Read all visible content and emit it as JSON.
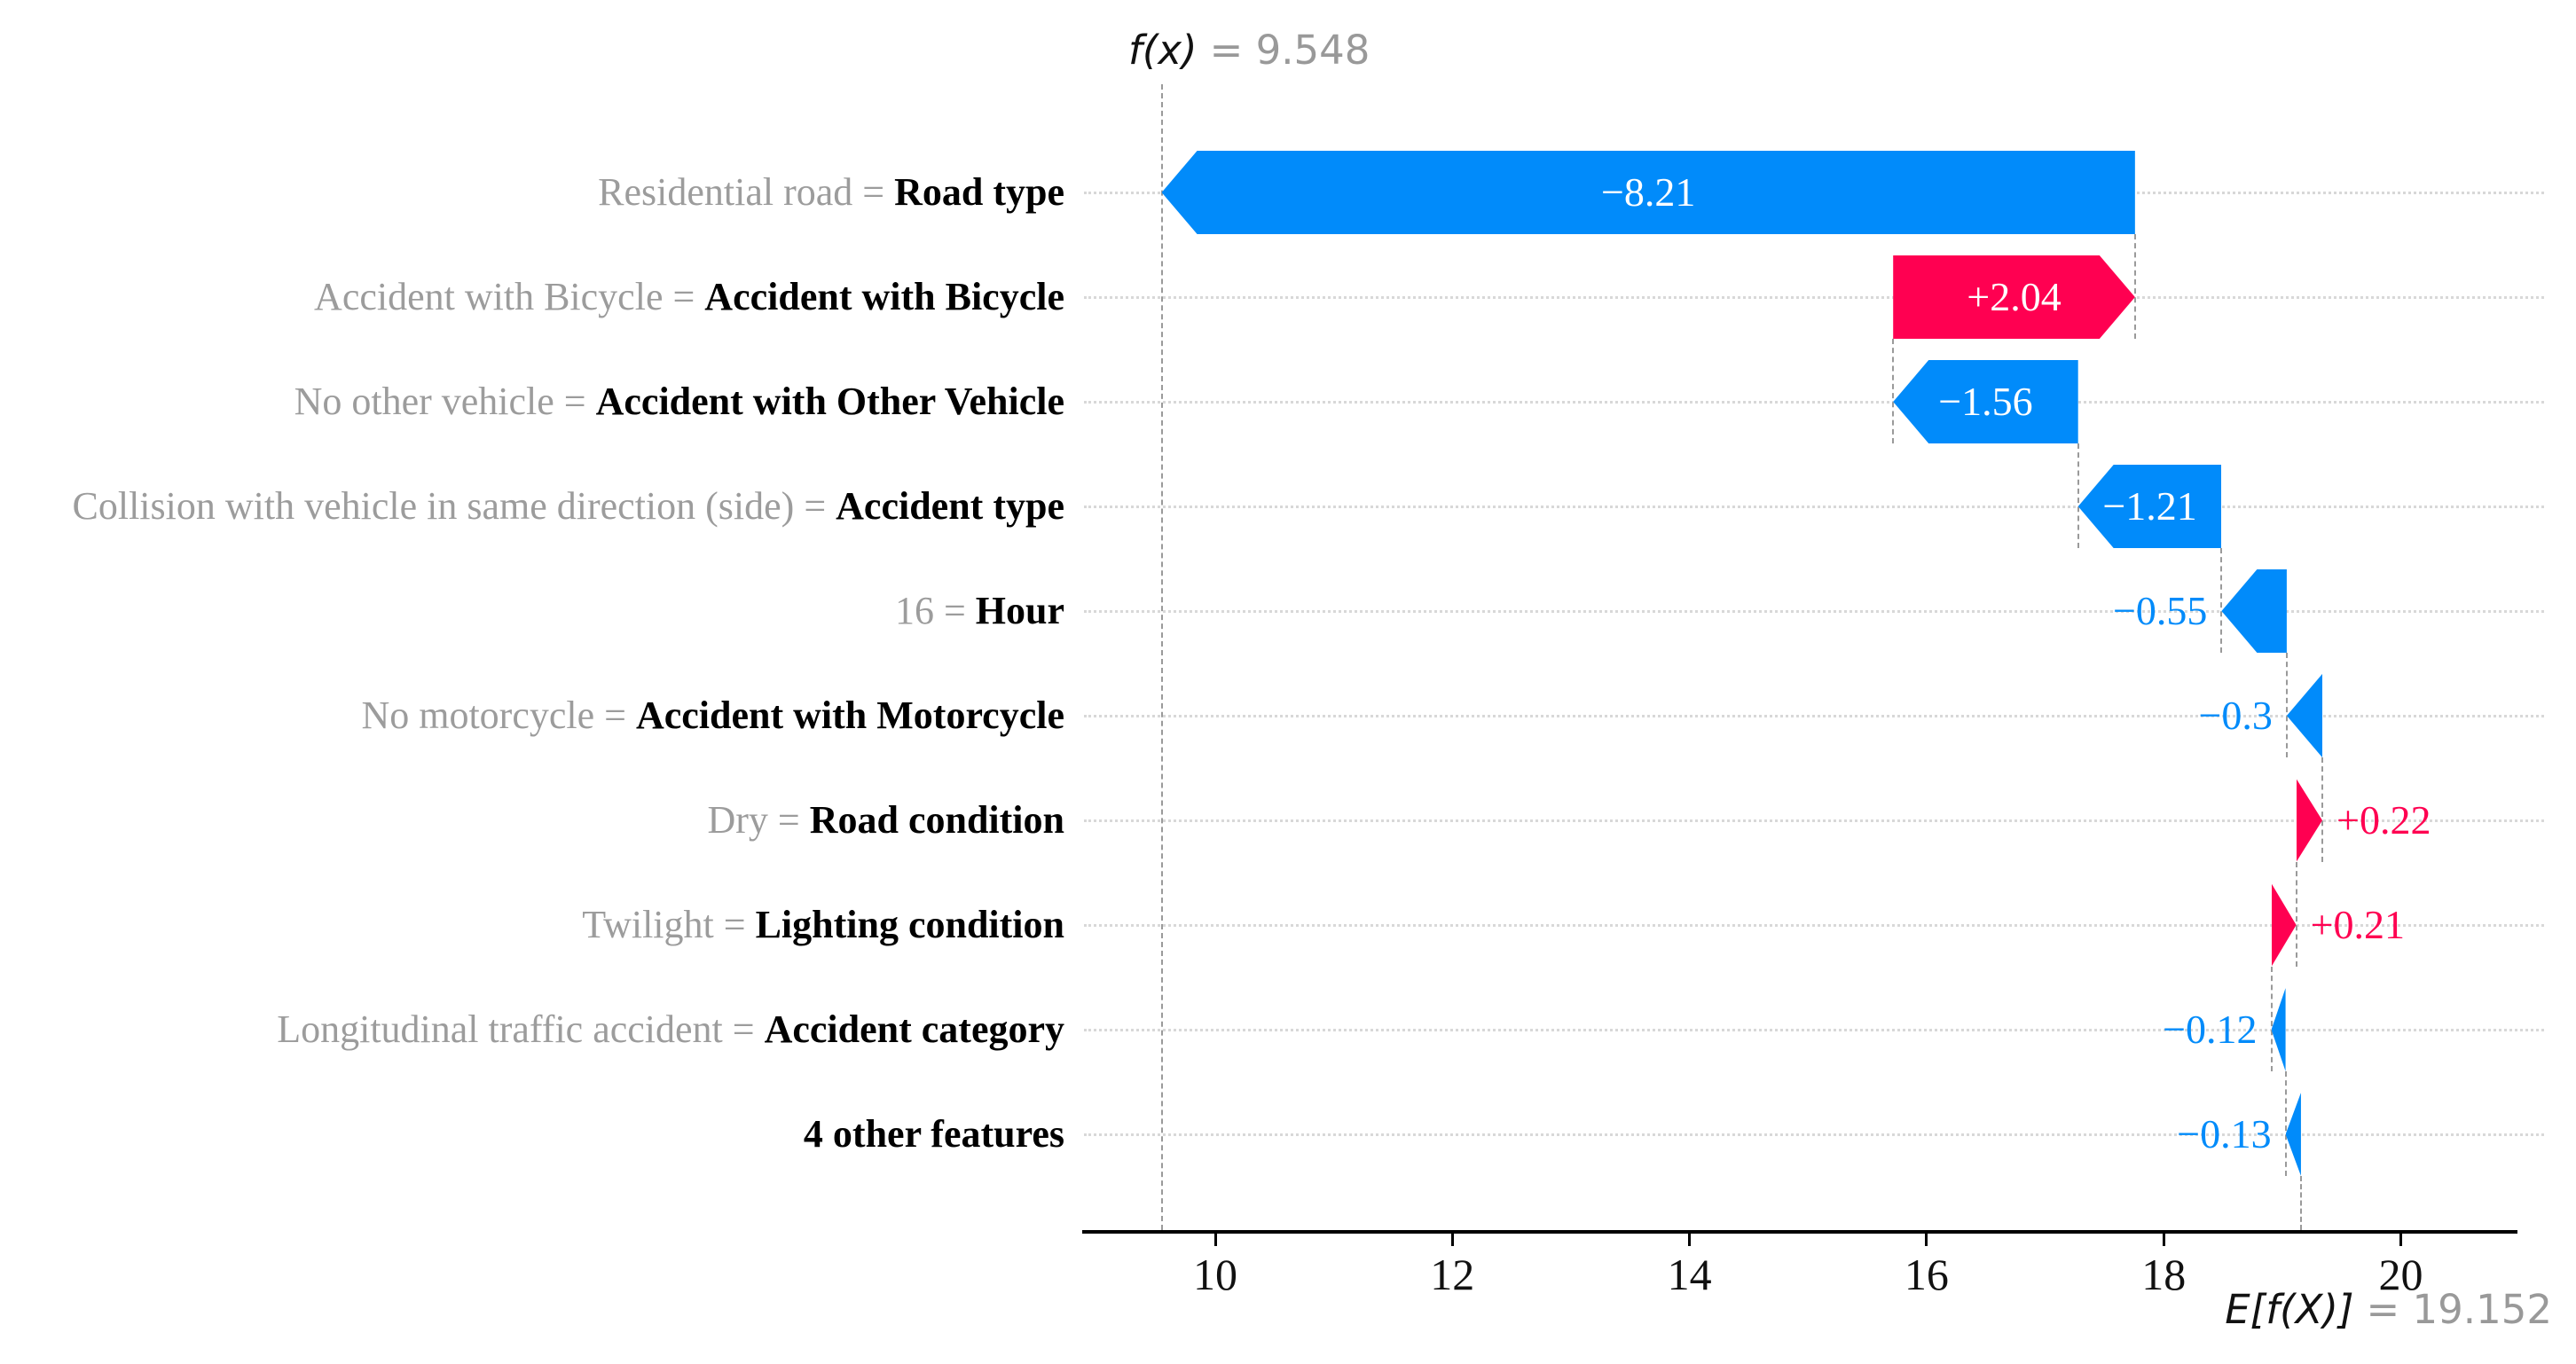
{
  "figure": {
    "background": "#ffffff"
  },
  "title": {
    "prefix": "f(x)",
    "suffix": "= 9.548"
  },
  "baseline": {
    "prefix": "E[f(X)]",
    "suffix": "= 19.152"
  },
  "colors": {
    "positive": "#ff0051",
    "negative": "#018bfa",
    "gray_label": "#9c9c9c",
    "black_label": "#000000",
    "gridline": "#d8d8d8",
    "dash_line": "#9a9a9a",
    "axis": "#000000",
    "inside_text": "#ffffff"
  },
  "chart_data": {
    "type": "waterfall",
    "title": "f(x) = 9.548",
    "fx": 9.548,
    "expected_value": 19.152,
    "expected_label": "E[f(X)] = 19.152",
    "x_ticks": [
      10,
      12,
      14,
      16,
      18,
      20
    ],
    "x_axis_range": [
      8.9,
      21.0
    ],
    "grid": "horizontal-dotted",
    "rows": [
      {
        "value_label": "Residential road",
        "feature": "Road type",
        "contribution": -8.21,
        "display": "−8.21"
      },
      {
        "value_label": "Accident with Bicycle",
        "feature": "Accident with Bicycle",
        "contribution": 2.04,
        "display": "+2.04"
      },
      {
        "value_label": "No other vehicle",
        "feature": "Accident with Other Vehicle",
        "contribution": -1.56,
        "display": "−1.56"
      },
      {
        "value_label": "Collision with vehicle in same direction (side)",
        "feature": "Accident type",
        "contribution": -1.21,
        "display": "−1.21"
      },
      {
        "value_label": "16",
        "feature": "Hour",
        "contribution": -0.55,
        "display": "−0.55"
      },
      {
        "value_label": "No motorcycle",
        "feature": "Accident with Motorcycle",
        "contribution": -0.3,
        "display": "−0.3"
      },
      {
        "value_label": "Dry",
        "feature": "Road condition",
        "contribution": 0.22,
        "display": "+0.22"
      },
      {
        "value_label": "Twilight",
        "feature": "Lighting condition",
        "contribution": 0.21,
        "display": "+0.21"
      },
      {
        "value_label": "Longitudinal traffic accident",
        "feature": "Accident category",
        "contribution": -0.12,
        "display": "−0.12"
      },
      {
        "value_label": "",
        "feature": "4 other features",
        "contribution": -0.13,
        "display": "−0.13"
      }
    ]
  }
}
